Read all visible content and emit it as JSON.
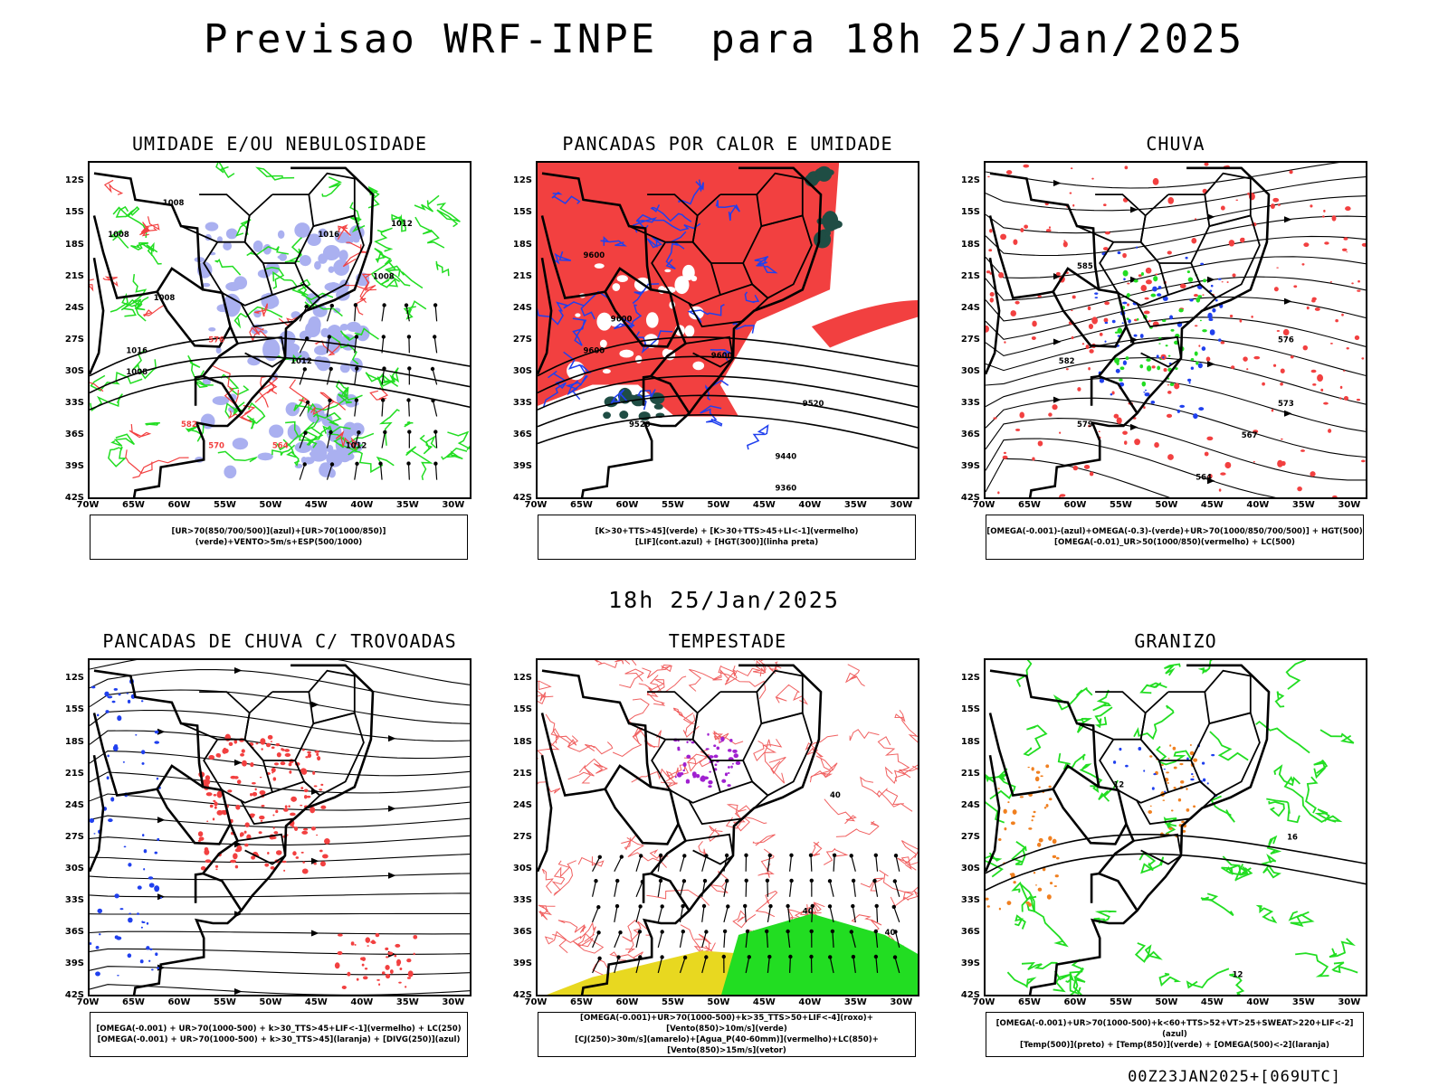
{
  "header": {
    "title": "Previsao WRF-INPE  para 18h 25/Jan/2025",
    "mid_title": "18h 25/Jan/2025"
  },
  "axes": {
    "lat_labels": [
      "12S",
      "15S",
      "18S",
      "21S",
      "24S",
      "27S",
      "30S",
      "33S",
      "36S",
      "39S",
      "42S"
    ],
    "lon_labels": [
      "70W",
      "65W",
      "60W",
      "55W",
      "50W",
      "45W",
      "40W",
      "35W",
      "30W"
    ]
  },
  "colors": {
    "red": "#f24040",
    "green": "#22dd22",
    "blue": "#2040ee",
    "lightblue": "#aab0f0",
    "darkgreen": "#1f4d44",
    "yellow": "#e8d820",
    "purple": "#a020d0",
    "orange": "#f08020"
  },
  "panels": [
    {
      "title": "UMIDADE E/OU NEBULOSIDADE",
      "legend": [
        "[UR>70(850/700/500)](azul)+[UR>70(1000/850)](verde)+VENTO>5m/s+ESP(500/1000)"
      ],
      "contour_labels": [
        "1008",
        "1008",
        "1008",
        "1016",
        "1012",
        "1008",
        "1012",
        "1016",
        "576",
        "582",
        "570",
        "564",
        "1012",
        "1008"
      ]
    },
    {
      "title": "PANCADAS POR CALOR E UMIDADE",
      "legend": [
        "[K>30+TTS>45](verde) + [K>30+TTS>45+LI<-1](vermelho)",
        "[LIF](cont.azul) + [HGT(300)](linha preta)"
      ],
      "contour_labels": [
        "9600",
        "9600",
        "9600",
        "9600",
        "9520",
        "9520",
        "9440",
        "9360"
      ]
    },
    {
      "title": "CHUVA",
      "legend": [
        "[OMEGA(-0.001)-(azul)+OMEGA(-0.3)-(verde)+UR>70(1000/850/700/500)] + HGT(500)",
        "[OMEGA(-0.01)_UR>50(1000/850)(vermelho) + LC(500)"
      ],
      "contour_labels": [
        "585",
        "582",
        "579",
        "576",
        "573",
        "567",
        "564"
      ]
    },
    {
      "title": "PANCADAS DE CHUVA C/ TROVOADAS",
      "legend": [
        "[OMEGA(-0.001) + UR>70(1000-500) + k>30_TTS>45+LIF<-1](vermelho) + LC(250)",
        "[OMEGA(-0.001) + UR>70(1000-500) + k>30_TTS>45](laranja) + [DIVG(250)](azul)"
      ],
      "contour_labels": []
    },
    {
      "title": "TEMPESTADE",
      "legend": [
        "[OMEGA(-0.001)+UR>70(1000-500)+k>35_TTS>50+LIF<-4](roxo)+[Vento(850)>10m/s](verde)",
        "[CJ(250)>30m/s](amarelo)+[Agua_P(40-60mm)](vermelho)+LC(850)+[Vento(850)>15m/s](vetor)"
      ],
      "contour_labels": [
        "40",
        "40",
        "40"
      ]
    },
    {
      "title": "GRANIZO",
      "legend": [
        "[OMEGA(-0.001)+UR>70(1000-500)+k<60+TTS>52+VT>25+SWEAT>220+LIF<-2](azul)",
        "[Temp(500)](preto) + [Temp(850)](verde) + [OMEGA(500)<-2](laranja)"
      ],
      "contour_labels": [
        "12",
        "16",
        "12"
      ]
    }
  ],
  "footer": {
    "run": "00Z23JAN2025+[069UTC]"
  }
}
